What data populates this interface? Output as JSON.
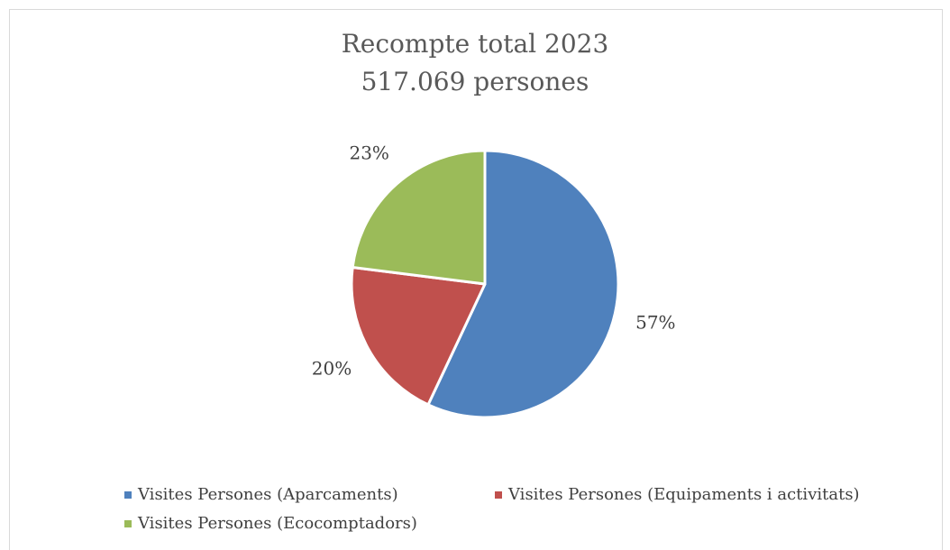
{
  "chart_data": {
    "type": "pie",
    "title": "Recompte total 2023",
    "subtitle": "517.069 persones",
    "slices": [
      {
        "label": "Visites Persones (Aparcaments)",
        "value": 57,
        "display": "57%",
        "color": "#4f81bd"
      },
      {
        "label": "Visites Persones (Equipaments i activitats)",
        "value": 20,
        "display": "20%",
        "color": "#c0504d"
      },
      {
        "label": "Visites Persones (Ecocomptadors)",
        "value": 23,
        "display": "23%",
        "color": "#9bbb59"
      }
    ],
    "legend_position": "bottom"
  }
}
